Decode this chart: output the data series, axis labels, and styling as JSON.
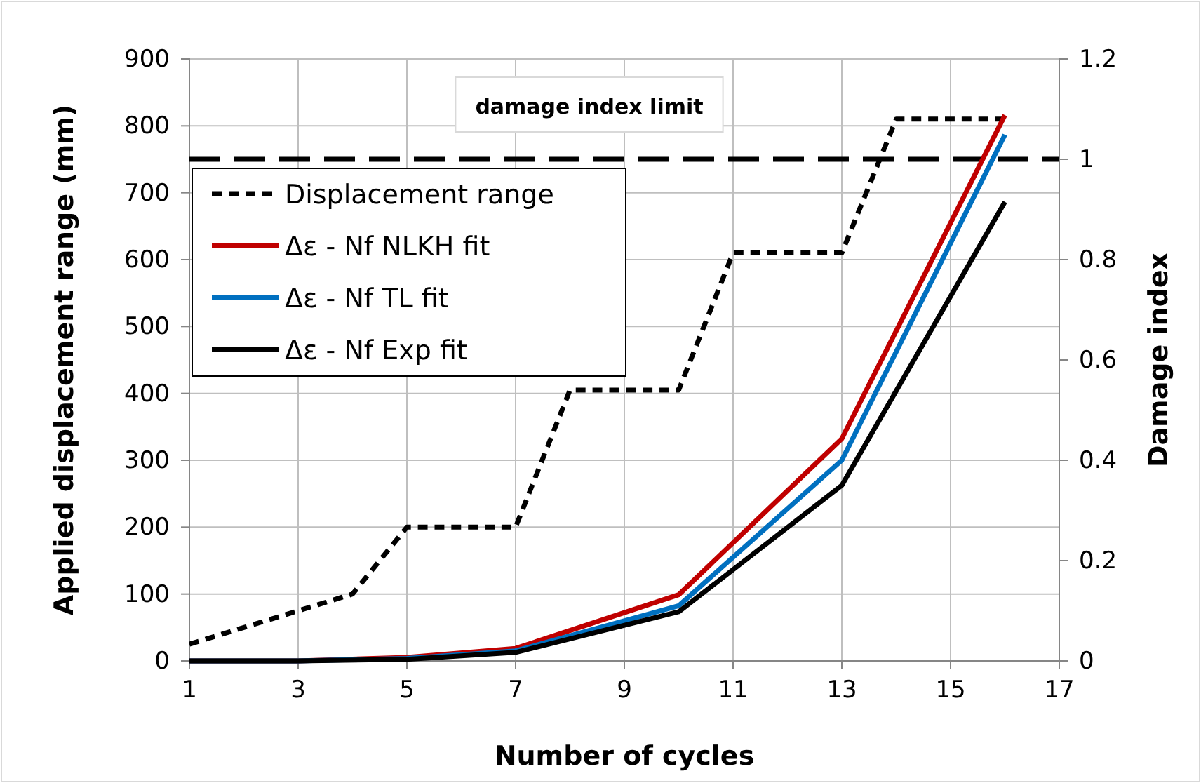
{
  "chart_data": {
    "type": "line",
    "xlabel": "Number of cycles",
    "ylabel": "Applied displacement range (mm)",
    "y2label": "Damage index",
    "xlim": [
      1,
      17
    ],
    "xticks": [
      1,
      3,
      5,
      7,
      9,
      11,
      13,
      15,
      17
    ],
    "ylim": [
      0,
      900
    ],
    "yticks": [
      0,
      100,
      200,
      300,
      400,
      500,
      600,
      700,
      800,
      900
    ],
    "y2lim": [
      0,
      1.2
    ],
    "y2ticks": [
      0,
      0.2,
      0.4,
      0.6,
      0.8,
      1,
      1.2
    ],
    "grid": true,
    "legend": "top left",
    "marker": "none",
    "ref_lines": [
      {
        "axis": "y2",
        "value": 1,
        "label": "damage index limit",
        "color": "#000000",
        "line_style": "dashed"
      }
    ],
    "series": [
      {
        "name": "Displacement range",
        "color": "#000000",
        "line_style": "dotted",
        "x": [
          1,
          4,
          5,
          7,
          8,
          10,
          11,
          13,
          14,
          16
        ],
        "values": [
          25,
          100,
          200,
          200,
          405,
          405,
          610,
          610,
          810,
          810
        ]
      },
      {
        "name": "Δε - Nf NLKH fit",
        "color": "#c00000",
        "axis": "y2",
        "x": [
          1,
          3,
          5,
          7,
          10,
          13,
          16
        ],
        "values": [
          0,
          0,
          0.007,
          0.025,
          0.132,
          0.443,
          1.088
        ]
      },
      {
        "name": "Δε - Nf TL fit",
        "color": "#0070c0",
        "axis": "y2",
        "x": [
          1,
          3,
          5,
          7,
          10,
          13,
          16
        ],
        "values": [
          0,
          0,
          0.005,
          0.02,
          0.11,
          0.4,
          1.049
        ]
      },
      {
        "name": "Δε - Nf Exp fit",
        "color": "#000000",
        "axis": "y2",
        "x": [
          1,
          3,
          5,
          7,
          10,
          13,
          16
        ],
        "values": [
          0,
          0,
          0.003,
          0.017,
          0.098,
          0.35,
          0.915
        ]
      }
    ]
  }
}
